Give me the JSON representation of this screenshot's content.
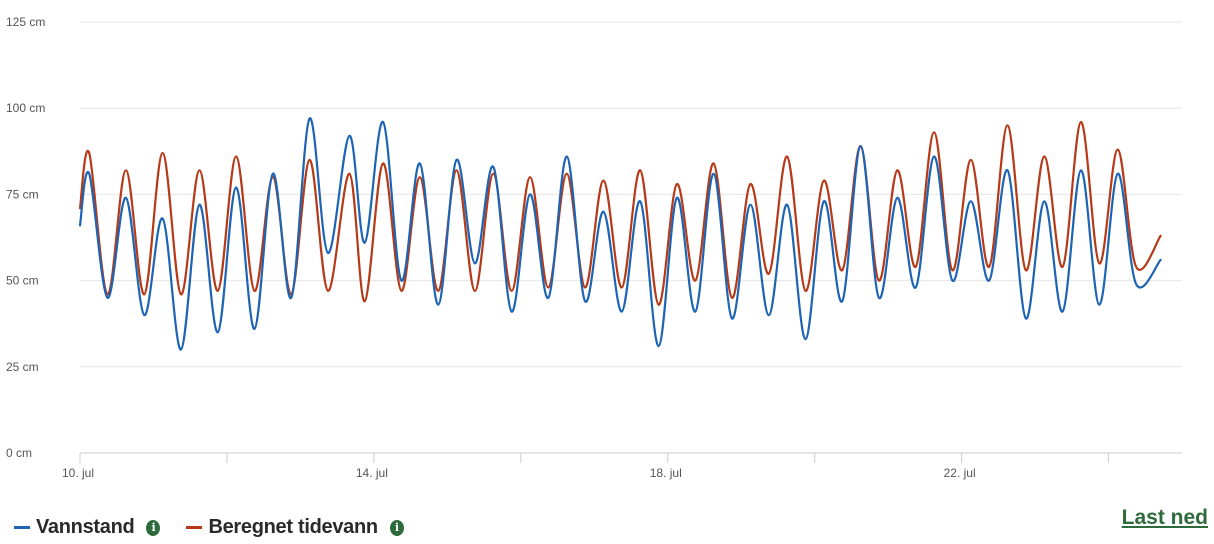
{
  "chart_data": {
    "type": "line",
    "x_unit": "hours since 10. jul 00:00",
    "x_ticks": [
      {
        "label": "10. jul",
        "x": 0
      },
      {
        "label": "14. jul",
        "x": 96
      },
      {
        "label": "18. jul",
        "x": 192
      },
      {
        "label": "22. jul",
        "x": 288
      }
    ],
    "minor_ticks": [
      48,
      144,
      240,
      336
    ],
    "ylim": [
      0,
      125
    ],
    "y_ticks": [
      {
        "label": "0 cm",
        "value": 0
      },
      {
        "label": "25 cm",
        "value": 25
      },
      {
        "label": "50 cm",
        "value": 50
      },
      {
        "label": "75 cm",
        "value": 75
      },
      {
        "label": "100 cm",
        "value": 100
      },
      {
        "label": "125 cm",
        "value": 125
      }
    ],
    "grid": true,
    "series": [
      {
        "name": "Vannstand",
        "color": "#1e64b4",
        "x": [
          0,
          3,
          9,
          15,
          21,
          27,
          33,
          39,
          45,
          51,
          57,
          63,
          69,
          75,
          81,
          88,
          93,
          99,
          105,
          111,
          117,
          123,
          129,
          135,
          141,
          147,
          153,
          159,
          165,
          171,
          177,
          183,
          189,
          195,
          201,
          207,
          213,
          219,
          225,
          231,
          237,
          243,
          249,
          255,
          261,
          267,
          273,
          279,
          285,
          291,
          297,
          303,
          309,
          315,
          321,
          327,
          333,
          339,
          345,
          353
        ],
        "values": [
          66,
          81,
          45,
          74,
          40,
          68,
          30,
          72,
          35,
          77,
          36,
          81,
          45,
          97,
          58,
          92,
          61,
          96,
          50,
          84,
          43,
          85,
          55,
          83,
          41,
          75,
          45,
          86,
          44,
          70,
          41,
          73,
          31,
          74,
          41,
          81,
          39,
          72,
          40,
          72,
          33,
          73,
          44,
          89,
          45,
          74,
          48,
          86,
          50,
          73,
          50,
          82,
          39,
          73,
          41,
          82,
          43,
          81,
          49,
          56
        ]
      },
      {
        "name": "Beregnet tidevann",
        "color": "#b63a18",
        "x": [
          0,
          3,
          9,
          15,
          21,
          27,
          33,
          39,
          45,
          51,
          57,
          63,
          69,
          75,
          81,
          88,
          93,
          99,
          105,
          111,
          117,
          123,
          129,
          135,
          141,
          147,
          153,
          159,
          165,
          171,
          177,
          183,
          189,
          195,
          201,
          207,
          213,
          219,
          225,
          231,
          237,
          243,
          249,
          255,
          261,
          267,
          273,
          279,
          285,
          291,
          297,
          303,
          309,
          315,
          321,
          327,
          333,
          339,
          345,
          353
        ],
        "values": [
          71,
          87,
          46,
          82,
          46,
          87,
          46,
          82,
          47,
          86,
          47,
          80,
          46,
          85,
          47,
          81,
          44,
          84,
          47,
          80,
          47,
          82,
          47,
          81,
          47,
          80,
          48,
          81,
          48,
          79,
          48,
          82,
          43,
          78,
          50,
          84,
          45,
          78,
          52,
          86,
          47,
          79,
          53,
          89,
          50,
          82,
          54,
          93,
          53,
          85,
          54,
          95,
          53,
          86,
          54,
          96,
          55,
          88,
          54,
          63
        ]
      }
    ]
  },
  "legend": {
    "items": [
      {
        "label": "Vannstand",
        "info_icon": "info-icon"
      },
      {
        "label": "Beregnet tidevann",
        "info_icon": "info-icon"
      }
    ]
  },
  "download_link": "Last ned",
  "colors": {
    "vannstand": "#1e64b4",
    "tidevann": "#b63a18",
    "info": "#2e6b3a",
    "link": "#2e6b3a",
    "grid": "#e6e6e6"
  }
}
